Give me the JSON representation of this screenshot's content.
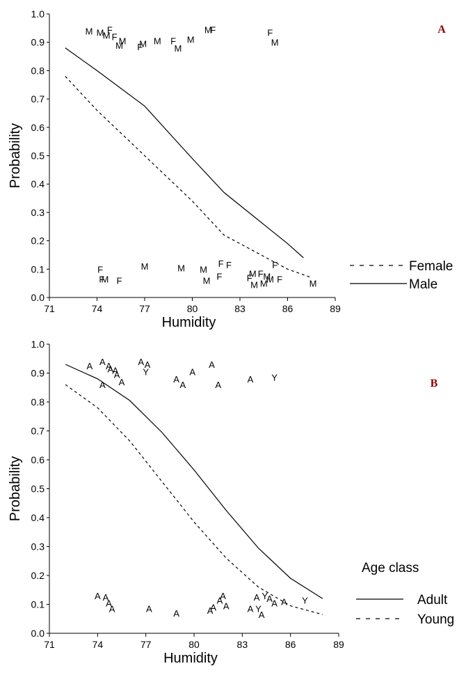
{
  "chart_data": [
    {
      "type": "line",
      "panel_label": "A",
      "xlabel": "Humidity",
      "ylabel": "Probability",
      "xlim": [
        71,
        89
      ],
      "ylim": [
        0,
        1
      ],
      "x_ticks": [
        "71",
        "74",
        "77",
        "80",
        "83",
        "86",
        "89"
      ],
      "y_ticks": [
        "0.0",
        "0.1",
        "0.2",
        "0.3",
        "0.4",
        "0.5",
        "0.6",
        "0.7",
        "0.8",
        "0.9",
        "1.0"
      ],
      "legend_title": "",
      "legend_position": "right",
      "series": [
        {
          "name": "Female",
          "style": "dashed",
          "x": [
            72,
            74,
            77,
            80,
            82,
            84,
            86,
            87.5
          ],
          "y": [
            0.78,
            0.66,
            0.5,
            0.34,
            0.22,
            0.16,
            0.1,
            0.07
          ]
        },
        {
          "name": "Male",
          "style": "solid",
          "x": [
            72,
            74,
            77,
            80,
            82,
            84,
            86,
            87
          ],
          "y": [
            0.88,
            0.8,
            0.675,
            0.49,
            0.37,
            0.28,
            0.19,
            0.14
          ]
        }
      ],
      "points": [
        {
          "x": 73.5,
          "y": 0.94,
          "label": "M"
        },
        {
          "x": 74.2,
          "y": 0.935,
          "label": "M"
        },
        {
          "x": 74.8,
          "y": 0.945,
          "label": "F"
        },
        {
          "x": 74.6,
          "y": 0.925,
          "label": "M"
        },
        {
          "x": 75.1,
          "y": 0.92,
          "label": "F"
        },
        {
          "x": 75.6,
          "y": 0.905,
          "label": "M"
        },
        {
          "x": 75.4,
          "y": 0.89,
          "label": "M"
        },
        {
          "x": 76.9,
          "y": 0.895,
          "label": "M"
        },
        {
          "x": 76.7,
          "y": 0.885,
          "label": "F"
        },
        {
          "x": 77.8,
          "y": 0.905,
          "label": "M"
        },
        {
          "x": 78.8,
          "y": 0.905,
          "label": "F"
        },
        {
          "x": 79.1,
          "y": 0.88,
          "label": "M"
        },
        {
          "x": 79.9,
          "y": 0.91,
          "label": "M"
        },
        {
          "x": 81.0,
          "y": 0.945,
          "label": "M"
        },
        {
          "x": 81.3,
          "y": 0.945,
          "label": "F"
        },
        {
          "x": 84.9,
          "y": 0.935,
          "label": "F"
        },
        {
          "x": 85.2,
          "y": 0.9,
          "label": "M"
        },
        {
          "x": 74.2,
          "y": 0.1,
          "label": "F"
        },
        {
          "x": 74.3,
          "y": 0.065,
          "label": "F"
        },
        {
          "x": 74.5,
          "y": 0.065,
          "label": "M"
        },
        {
          "x": 75.4,
          "y": 0.06,
          "label": "F"
        },
        {
          "x": 77.0,
          "y": 0.11,
          "label": "M"
        },
        {
          "x": 79.3,
          "y": 0.105,
          "label": "M"
        },
        {
          "x": 80.7,
          "y": 0.1,
          "label": "M"
        },
        {
          "x": 81.7,
          "y": 0.075,
          "label": "F"
        },
        {
          "x": 81.8,
          "y": 0.12,
          "label": "F"
        },
        {
          "x": 82.3,
          "y": 0.115,
          "label": "F"
        },
        {
          "x": 80.9,
          "y": 0.06,
          "label": "M"
        },
        {
          "x": 83.6,
          "y": 0.07,
          "label": "F"
        },
        {
          "x": 83.8,
          "y": 0.085,
          "label": "M"
        },
        {
          "x": 83.9,
          "y": 0.045,
          "label": "M"
        },
        {
          "x": 84.3,
          "y": 0.085,
          "label": "F"
        },
        {
          "x": 84.7,
          "y": 0.075,
          "label": "M"
        },
        {
          "x": 84.5,
          "y": 0.05,
          "label": "M"
        },
        {
          "x": 84.9,
          "y": 0.065,
          "label": "M"
        },
        {
          "x": 85.2,
          "y": 0.115,
          "label": "F"
        },
        {
          "x": 85.5,
          "y": 0.065,
          "label": "F"
        },
        {
          "x": 87.6,
          "y": 0.05,
          "label": "M"
        }
      ]
    },
    {
      "type": "line",
      "panel_label": "B",
      "xlabel": "Humidity",
      "ylabel": "Probability",
      "xlim": [
        71,
        89
      ],
      "ylim": [
        0,
        1
      ],
      "x_ticks": [
        "71",
        "74",
        "77",
        "80",
        "83",
        "86",
        "89"
      ],
      "y_ticks": [
        "0.0",
        "0.1",
        "0.2",
        "0.3",
        "0.4",
        "0.5",
        "0.6",
        "0.7",
        "0.8",
        "0.9",
        "1.0"
      ],
      "legend_title": "Age class",
      "legend_position": "right",
      "series": [
        {
          "name": "Adult",
          "style": "solid",
          "x": [
            72,
            74,
            76,
            78,
            80,
            82,
            84,
            86,
            88
          ],
          "y": [
            0.93,
            0.88,
            0.805,
            0.695,
            0.565,
            0.425,
            0.295,
            0.19,
            0.12
          ]
        },
        {
          "name": "Young",
          "style": "dashed",
          "x": [
            72,
            74,
            76,
            78,
            80,
            82,
            84,
            86,
            88
          ],
          "y": [
            0.86,
            0.78,
            0.665,
            0.525,
            0.385,
            0.26,
            0.16,
            0.095,
            0.065
          ]
        }
      ],
      "points": [
        {
          "x": 73.5,
          "y": 0.925,
          "label": "A"
        },
        {
          "x": 74.3,
          "y": 0.94,
          "label": "A"
        },
        {
          "x": 74.7,
          "y": 0.925,
          "label": "A"
        },
        {
          "x": 74.8,
          "y": 0.915,
          "label": "A"
        },
        {
          "x": 75.1,
          "y": 0.91,
          "label": "A"
        },
        {
          "x": 75.2,
          "y": 0.895,
          "label": "A"
        },
        {
          "x": 75.5,
          "y": 0.87,
          "label": "A"
        },
        {
          "x": 74.3,
          "y": 0.86,
          "label": "A"
        },
        {
          "x": 76.7,
          "y": 0.94,
          "label": "A"
        },
        {
          "x": 77.1,
          "y": 0.93,
          "label": "A"
        },
        {
          "x": 77.0,
          "y": 0.905,
          "label": "Y"
        },
        {
          "x": 78.9,
          "y": 0.88,
          "label": "A"
        },
        {
          "x": 79.3,
          "y": 0.86,
          "label": "A"
        },
        {
          "x": 79.9,
          "y": 0.905,
          "label": "A"
        },
        {
          "x": 81.1,
          "y": 0.93,
          "label": "A"
        },
        {
          "x": 81.5,
          "y": 0.86,
          "label": "A"
        },
        {
          "x": 83.5,
          "y": 0.88,
          "label": "A"
        },
        {
          "x": 85.0,
          "y": 0.885,
          "label": "Y"
        },
        {
          "x": 74.0,
          "y": 0.13,
          "label": "A"
        },
        {
          "x": 74.5,
          "y": 0.125,
          "label": "A"
        },
        {
          "x": 74.7,
          "y": 0.105,
          "label": "A"
        },
        {
          "x": 74.9,
          "y": 0.085,
          "label": "A"
        },
        {
          "x": 77.2,
          "y": 0.085,
          "label": "A"
        },
        {
          "x": 78.9,
          "y": 0.07,
          "label": "A"
        },
        {
          "x": 81.0,
          "y": 0.08,
          "label": "A"
        },
        {
          "x": 81.2,
          "y": 0.09,
          "label": "A"
        },
        {
          "x": 81.6,
          "y": 0.115,
          "label": "A"
        },
        {
          "x": 81.8,
          "y": 0.13,
          "label": "A"
        },
        {
          "x": 82.0,
          "y": 0.095,
          "label": "A"
        },
        {
          "x": 83.5,
          "y": 0.085,
          "label": "A"
        },
        {
          "x": 83.9,
          "y": 0.125,
          "label": "A"
        },
        {
          "x": 84.0,
          "y": 0.085,
          "label": "Y"
        },
        {
          "x": 84.2,
          "y": 0.065,
          "label": "A"
        },
        {
          "x": 84.4,
          "y": 0.13,
          "label": "Y"
        },
        {
          "x": 84.7,
          "y": 0.12,
          "label": "A"
        },
        {
          "x": 85.0,
          "y": 0.105,
          "label": "A"
        },
        {
          "x": 85.6,
          "y": 0.11,
          "label": "A"
        },
        {
          "x": 86.9,
          "y": 0.115,
          "label": "Y"
        }
      ]
    }
  ]
}
